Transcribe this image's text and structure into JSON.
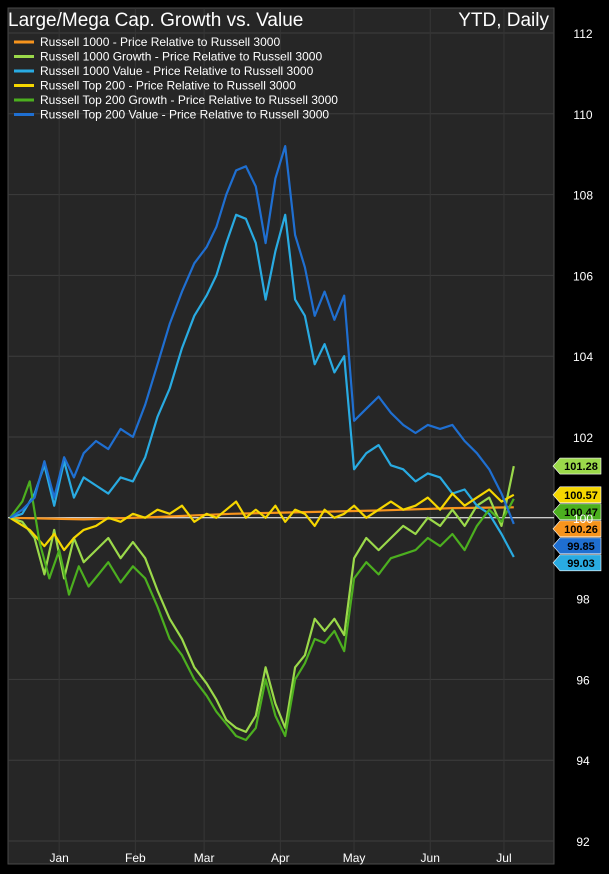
{
  "header": {
    "title": "Large/Mega Cap. Growth vs. Value",
    "period": "YTD, Daily"
  },
  "chart_data": {
    "type": "line",
    "title": "Large/Mega Cap. Growth vs. Value",
    "subtitle": "YTD, Daily",
    "xlabel": "",
    "ylabel": "",
    "ylim": [
      92,
      112
    ],
    "yticks": [
      92,
      94,
      96,
      98,
      100,
      102,
      104,
      106,
      108,
      110,
      112
    ],
    "x_tick_labels": [
      "Jan",
      "Feb",
      "Mar",
      "Apr",
      "May",
      "Jun",
      "Jul"
    ],
    "x_tick_days": [
      20,
      51,
      79,
      110,
      140,
      171,
      201
    ],
    "xlim": [
      0,
      212
    ],
    "baseline": 100,
    "grid": true,
    "legend_position": "top-left",
    "series": [
      {
        "name": "Russell 1000 - Price Relative to Russell 3000",
        "color": "#f7941d",
        "end_label": "100.26",
        "points": [
          [
            0,
            100.0
          ],
          [
            30,
            99.96
          ],
          [
            60,
            100.02
          ],
          [
            90,
            100.1
          ],
          [
            120,
            100.14
          ],
          [
            150,
            100.18
          ],
          [
            180,
            100.24
          ],
          [
            205,
            100.26
          ]
        ]
      },
      {
        "name": "Russell 1000 Growth - Price Relative to Russell 3000",
        "color": "#9bd94a",
        "end_label": "101.28",
        "points": [
          [
            0,
            100.0
          ],
          [
            5,
            99.9
          ],
          [
            10,
            99.5
          ],
          [
            14,
            98.6
          ],
          [
            18,
            99.7
          ],
          [
            22,
            98.5
          ],
          [
            26,
            99.5
          ],
          [
            30,
            98.9
          ],
          [
            35,
            99.2
          ],
          [
            40,
            99.5
          ],
          [
            45,
            99.0
          ],
          [
            50,
            99.4
          ],
          [
            55,
            99.0
          ],
          [
            60,
            98.2
          ],
          [
            65,
            97.5
          ],
          [
            70,
            97.0
          ],
          [
            75,
            96.3
          ],
          [
            80,
            95.9
          ],
          [
            84,
            95.5
          ],
          [
            88,
            95.0
          ],
          [
            92,
            94.8
          ],
          [
            96,
            94.7
          ],
          [
            100,
            95.1
          ],
          [
            104,
            96.3
          ],
          [
            108,
            95.4
          ],
          [
            112,
            94.8
          ],
          [
            116,
            96.3
          ],
          [
            120,
            96.6
          ],
          [
            124,
            97.5
          ],
          [
            128,
            97.2
          ],
          [
            132,
            97.5
          ],
          [
            136,
            97.1
          ],
          [
            140,
            99.0
          ],
          [
            145,
            99.5
          ],
          [
            150,
            99.2
          ],
          [
            155,
            99.5
          ],
          [
            160,
            99.8
          ],
          [
            165,
            99.6
          ],
          [
            170,
            100.0
          ],
          [
            175,
            99.8
          ],
          [
            180,
            100.2
          ],
          [
            185,
            99.8
          ],
          [
            190,
            100.3
          ],
          [
            195,
            100.5
          ],
          [
            200,
            99.8
          ],
          [
            205,
            101.28
          ]
        ]
      },
      {
        "name": "Russell 1000 Value - Price Relative to Russell 3000",
        "color": "#29abe2",
        "end_label": "99.03",
        "points": [
          [
            0,
            100.0
          ],
          [
            5,
            100.1
          ],
          [
            10,
            100.6
          ],
          [
            14,
            101.3
          ],
          [
            18,
            100.3
          ],
          [
            22,
            101.4
          ],
          [
            26,
            100.5
          ],
          [
            30,
            101.0
          ],
          [
            35,
            100.8
          ],
          [
            40,
            100.6
          ],
          [
            45,
            101.0
          ],
          [
            50,
            100.9
          ],
          [
            55,
            101.5
          ],
          [
            60,
            102.5
          ],
          [
            65,
            103.2
          ],
          [
            70,
            104.2
          ],
          [
            75,
            105.0
          ],
          [
            80,
            105.5
          ],
          [
            84,
            106.0
          ],
          [
            88,
            106.8
          ],
          [
            92,
            107.5
          ],
          [
            96,
            107.4
          ],
          [
            100,
            106.8
          ],
          [
            104,
            105.4
          ],
          [
            108,
            106.6
          ],
          [
            112,
            107.5
          ],
          [
            116,
            105.4
          ],
          [
            120,
            105.0
          ],
          [
            124,
            103.8
          ],
          [
            128,
            104.3
          ],
          [
            132,
            103.6
          ],
          [
            136,
            104.0
          ],
          [
            140,
            101.2
          ],
          [
            145,
            101.6
          ],
          [
            150,
            101.8
          ],
          [
            155,
            101.3
          ],
          [
            160,
            101.2
          ],
          [
            165,
            100.9
          ],
          [
            170,
            101.1
          ],
          [
            175,
            101.0
          ],
          [
            180,
            100.6
          ],
          [
            185,
            100.7
          ],
          [
            190,
            100.3
          ],
          [
            195,
            100.1
          ],
          [
            200,
            99.6
          ],
          [
            205,
            99.03
          ]
        ]
      },
      {
        "name": "Russell Top 200 - Price Relative to Russell 3000",
        "color": "#f5d600",
        "end_label": "100.57",
        "points": [
          [
            0,
            100.0
          ],
          [
            8,
            99.7
          ],
          [
            14,
            99.3
          ],
          [
            18,
            99.6
          ],
          [
            22,
            99.2
          ],
          [
            26,
            99.5
          ],
          [
            30,
            99.7
          ],
          [
            35,
            99.8
          ],
          [
            40,
            100.0
          ],
          [
            45,
            99.9
          ],
          [
            50,
            100.1
          ],
          [
            55,
            100.0
          ],
          [
            60,
            100.2
          ],
          [
            65,
            100.1
          ],
          [
            70,
            100.3
          ],
          [
            75,
            99.9
          ],
          [
            80,
            100.1
          ],
          [
            84,
            100.0
          ],
          [
            88,
            100.2
          ],
          [
            92,
            100.4
          ],
          [
            96,
            100.0
          ],
          [
            100,
            100.2
          ],
          [
            104,
            100.0
          ],
          [
            108,
            100.3
          ],
          [
            112,
            99.9
          ],
          [
            116,
            100.2
          ],
          [
            120,
            100.1
          ],
          [
            124,
            99.8
          ],
          [
            128,
            100.2
          ],
          [
            132,
            100.0
          ],
          [
            136,
            100.1
          ],
          [
            140,
            100.3
          ],
          [
            145,
            100.0
          ],
          [
            150,
            100.2
          ],
          [
            155,
            100.4
          ],
          [
            160,
            100.2
          ],
          [
            165,
            100.3
          ],
          [
            170,
            100.5
          ],
          [
            175,
            100.2
          ],
          [
            180,
            100.6
          ],
          [
            185,
            100.3
          ],
          [
            190,
            100.5
          ],
          [
            195,
            100.7
          ],
          [
            200,
            100.4
          ],
          [
            205,
            100.57
          ]
        ]
      },
      {
        "name": "Russell Top 200 Growth - Price Relative to Russell 3000",
        "color": "#4caf1f",
        "end_label": "100.47",
        "points": [
          [
            0,
            100.0
          ],
          [
            5,
            100.4
          ],
          [
            8,
            100.9
          ],
          [
            12,
            99.4
          ],
          [
            16,
            98.5
          ],
          [
            20,
            99.2
          ],
          [
            24,
            98.1
          ],
          [
            28,
            98.8
          ],
          [
            32,
            98.3
          ],
          [
            36,
            98.6
          ],
          [
            40,
            98.9
          ],
          [
            45,
            98.4
          ],
          [
            50,
            98.8
          ],
          [
            55,
            98.5
          ],
          [
            60,
            97.8
          ],
          [
            65,
            97.0
          ],
          [
            70,
            96.6
          ],
          [
            75,
            96.0
          ],
          [
            80,
            95.6
          ],
          [
            84,
            95.2
          ],
          [
            88,
            94.9
          ],
          [
            92,
            94.6
          ],
          [
            96,
            94.5
          ],
          [
            100,
            94.8
          ],
          [
            104,
            96.0
          ],
          [
            108,
            95.1
          ],
          [
            112,
            94.6
          ],
          [
            116,
            96.0
          ],
          [
            120,
            96.4
          ],
          [
            124,
            97.0
          ],
          [
            128,
            96.9
          ],
          [
            132,
            97.2
          ],
          [
            136,
            96.7
          ],
          [
            140,
            98.5
          ],
          [
            145,
            98.9
          ],
          [
            150,
            98.6
          ],
          [
            155,
            99.0
          ],
          [
            160,
            99.1
          ],
          [
            165,
            99.2
          ],
          [
            170,
            99.5
          ],
          [
            175,
            99.3
          ],
          [
            180,
            99.6
          ],
          [
            185,
            99.2
          ],
          [
            190,
            99.8
          ],
          [
            195,
            100.2
          ],
          [
            200,
            99.9
          ],
          [
            205,
            100.47
          ]
        ]
      },
      {
        "name": "Russell Top 200 Value - Price Relative to Russell 3000",
        "color": "#1f6fd1",
        "end_label": "99.85",
        "points": [
          [
            0,
            100.0
          ],
          [
            5,
            100.2
          ],
          [
            10,
            100.5
          ],
          [
            14,
            101.4
          ],
          [
            18,
            100.5
          ],
          [
            22,
            101.5
          ],
          [
            26,
            101.0
          ],
          [
            30,
            101.6
          ],
          [
            35,
            101.9
          ],
          [
            40,
            101.7
          ],
          [
            45,
            102.2
          ],
          [
            50,
            102.0
          ],
          [
            55,
            102.8
          ],
          [
            60,
            103.8
          ],
          [
            65,
            104.8
          ],
          [
            70,
            105.6
          ],
          [
            75,
            106.3
          ],
          [
            80,
            106.7
          ],
          [
            84,
            107.2
          ],
          [
            88,
            108.0
          ],
          [
            92,
            108.6
          ],
          [
            96,
            108.7
          ],
          [
            100,
            108.2
          ],
          [
            104,
            106.8
          ],
          [
            108,
            108.4
          ],
          [
            112,
            109.2
          ],
          [
            116,
            107.0
          ],
          [
            120,
            106.2
          ],
          [
            124,
            105.0
          ],
          [
            128,
            105.6
          ],
          [
            132,
            104.9
          ],
          [
            136,
            105.5
          ],
          [
            140,
            102.4
          ],
          [
            145,
            102.7
          ],
          [
            150,
            103.0
          ],
          [
            155,
            102.6
          ],
          [
            160,
            102.3
          ],
          [
            165,
            102.1
          ],
          [
            170,
            102.3
          ],
          [
            175,
            102.2
          ],
          [
            180,
            102.3
          ],
          [
            185,
            101.9
          ],
          [
            190,
            101.6
          ],
          [
            195,
            101.2
          ],
          [
            200,
            100.6
          ],
          [
            205,
            99.85
          ]
        ]
      }
    ]
  }
}
